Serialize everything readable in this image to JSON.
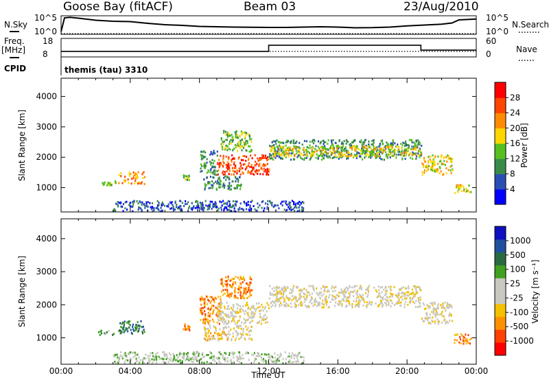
{
  "header": {
    "station": "Goose Bay (fitACF)",
    "beam": "Beam 03",
    "date": "23/Aug/2010"
  },
  "strip_labels": {
    "nsky": "N.Sky",
    "nsearch": "N.Search",
    "freq_top": "Freq.",
    "freq_unit": "[MHz]",
    "nave": "Nave",
    "cpid": "CPID",
    "cpid_value": "themis (tau) 3310",
    "noise_left_ticks": [
      "10^5",
      "10^0"
    ],
    "noise_right_ticks": [
      "10^5",
      "10^0"
    ],
    "freq_left_ticks": [
      "18",
      "8"
    ],
    "nave_right_ticks": [
      "60",
      "0"
    ]
  },
  "colors": {
    "power_scale": [
      "#0000ff",
      "#2a4fb4",
      "#3a8a4a",
      "#55c020",
      "#ffd700",
      "#ff8c00",
      "#ff4500",
      "#ff0000"
    ],
    "velocity_scale": [
      "#ff0000",
      "#ff4000",
      "#ff9000",
      "#f5c000",
      "#c8c8c0",
      "#c8c8c0",
      "#40a020",
      "#2a6a40",
      "#2050a0",
      "#1010c0"
    ],
    "ground_scatter": "#c8c8c0"
  },
  "chart_data": [
    {
      "type": "line",
      "panel": "noise",
      "series": [
        {
          "name": "N.Sky",
          "style": "solid",
          "x": [
            0.0,
            0.2,
            0.5,
            1,
            2,
            3,
            4,
            5,
            6,
            7,
            8,
            9,
            10,
            11,
            12,
            13,
            14,
            15,
            16,
            17,
            18,
            19,
            20,
            21,
            22,
            22.6,
            23,
            24
          ],
          "y": [
            0.12,
            0.92,
            0.95,
            0.9,
            0.78,
            0.72,
            0.7,
            0.6,
            0.52,
            0.48,
            0.42,
            0.4,
            0.38,
            0.37,
            0.36,
            0.36,
            0.38,
            0.4,
            0.38,
            0.34,
            0.35,
            0.38,
            0.45,
            0.5,
            0.55,
            0.62,
            0.8,
            0.85
          ]
        },
        {
          "name": "N.Search",
          "style": "dotted",
          "x": [
            0,
            24
          ],
          "y": [
            0.0,
            0.0
          ]
        }
      ]
    },
    {
      "type": "line",
      "panel": "frequency",
      "series": [
        {
          "name": "Freq",
          "style": "solid",
          "x": [
            0,
            12.0,
            12.0,
            20.8,
            20.8,
            24
          ],
          "y": [
            10,
            10,
            15,
            15,
            11,
            11
          ]
        },
        {
          "name": "Nave",
          "style": "dotted",
          "x": [
            0,
            24
          ],
          "y": [
            10,
            10
          ]
        }
      ]
    },
    {
      "type": "heatmap",
      "panel": "power",
      "xlabel": "",
      "ylabel": "Slant Range [km]",
      "x_ticks": [
        "00:00",
        "04:00",
        "08:00",
        "12:00",
        "16:00",
        "20:00",
        "00:00"
      ],
      "y_ticks": [
        "1000",
        "2000",
        "3000",
        "4000"
      ],
      "ylim": [
        200,
        4600
      ],
      "xlim": [
        0,
        24
      ],
      "colorbar_label": "Power [dB]",
      "colorbar_ticks": [
        "28",
        "24",
        "20",
        "16",
        "12",
        "8",
        "4"
      ],
      "regions": [
        {
          "x0": 2.0,
          "x1": 3.2,
          "y0": 1100,
          "y1": 1250,
          "level": 3
        },
        {
          "x0": 3.3,
          "x1": 4.8,
          "y0": 1150,
          "y1": 1550,
          "level": 5
        },
        {
          "x0": 7.0,
          "x1": 7.4,
          "y0": 1250,
          "y1": 1450,
          "level": 3
        },
        {
          "x0": 8.0,
          "x1": 9.0,
          "y0": 1450,
          "y1": 2250,
          "level": 2
        },
        {
          "x0": 8.2,
          "x1": 10.4,
          "y0": 950,
          "y1": 1400,
          "level": 2
        },
        {
          "x0": 9.0,
          "x1": 12.0,
          "y0": 1450,
          "y1": 2100,
          "level": 6
        },
        {
          "x0": 9.2,
          "x1": 11.0,
          "y0": 2200,
          "y1": 2900,
          "level": 3
        },
        {
          "x0": 12.0,
          "x1": 20.8,
          "y0": 1950,
          "y1": 2600,
          "level": 2
        },
        {
          "x0": 12.0,
          "x1": 20.8,
          "y0": 2050,
          "y1": 2400,
          "level": 4
        },
        {
          "x0": 20.8,
          "x1": 22.6,
          "y0": 1450,
          "y1": 2100,
          "level": 4
        },
        {
          "x0": 22.7,
          "x1": 23.7,
          "y0": 850,
          "y1": 1150,
          "level": 4
        },
        {
          "x0": 3.0,
          "x1": 14.0,
          "y0": 250,
          "y1": 600,
          "level": 1
        }
      ]
    },
    {
      "type": "heatmap",
      "panel": "velocity",
      "xlabel": "Time UT",
      "ylabel": "Slant Range [km]",
      "x_ticks": [
        "00:00",
        "04:00",
        "08:00",
        "12:00",
        "16:00",
        "20:00",
        "00:00"
      ],
      "y_ticks": [
        "1000",
        "2000",
        "3000",
        "4000"
      ],
      "ylim": [
        200,
        4600
      ],
      "xlim": [
        0,
        24
      ],
      "colorbar_label": "Velocity [m s⁻¹]",
      "colorbar_ticks": [
        "1000",
        "500",
        "100",
        "25",
        "-25",
        "-100",
        "-500",
        "-1000"
      ],
      "regions": [
        {
          "x0": 2.0,
          "x1": 3.2,
          "y0": 1100,
          "y1": 1250,
          "level": 6
        },
        {
          "x0": 3.3,
          "x1": 4.8,
          "y0": 1150,
          "y1": 1550,
          "level": 7
        },
        {
          "x0": 7.0,
          "x1": 7.4,
          "y0": 1250,
          "y1": 1450,
          "level": 2
        },
        {
          "x0": 8.0,
          "x1": 9.2,
          "y0": 1450,
          "y1": 2300,
          "level": 2
        },
        {
          "x0": 8.2,
          "x1": 9.6,
          "y0": 950,
          "y1": 1400,
          "level": 3
        },
        {
          "x0": 9.0,
          "x1": 12.0,
          "y0": 1450,
          "y1": 2100,
          "level": 4
        },
        {
          "x0": 9.6,
          "x1": 11.0,
          "y0": 950,
          "y1": 1400,
          "level": 4
        },
        {
          "x0": 9.2,
          "x1": 11.0,
          "y0": 2200,
          "y1": 2900,
          "level": 2
        },
        {
          "x0": 12.0,
          "x1": 20.8,
          "y0": 1950,
          "y1": 2600,
          "level": 4
        },
        {
          "x0": 20.8,
          "x1": 22.6,
          "y0": 1450,
          "y1": 2100,
          "level": 4
        },
        {
          "x0": 22.7,
          "x1": 23.7,
          "y0": 850,
          "y1": 1150,
          "level": 2
        },
        {
          "x0": 3.0,
          "x1": 14.0,
          "y0": 250,
          "y1": 600,
          "level": 5
        }
      ]
    }
  ]
}
